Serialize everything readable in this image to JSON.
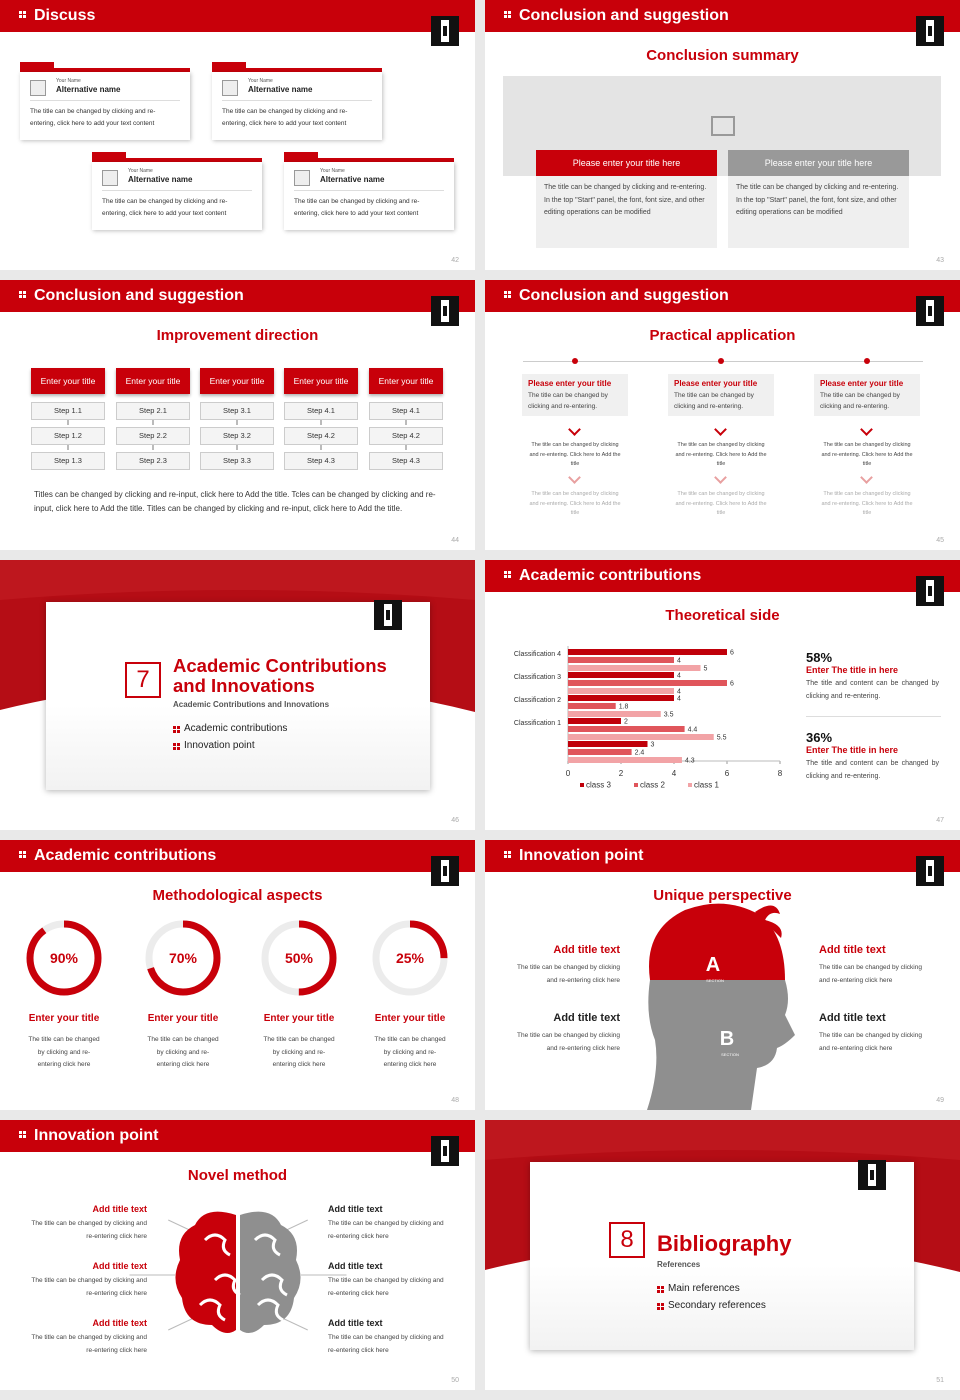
{
  "slides": [
    {
      "header": "Discuss",
      "page": "42",
      "cards": [
        {
          "small": "Your Name",
          "name": "Alternative name",
          "text": "The title can be changed by clicking and re-entering, click here to add your text content"
        },
        {
          "small": "Your Name",
          "name": "Alternative name",
          "text": "The title can be changed by clicking and re-entering, click here to add your text content"
        },
        {
          "small": "Your Name",
          "name": "Alternative name",
          "text": "The title can be changed by clicking and re-entering, click here to add your text content"
        },
        {
          "small": "Your Name",
          "name": "Alternative name",
          "text": "The title can be changed by clicking and re-entering, click here to add your text content"
        }
      ]
    },
    {
      "header": "Conclusion and suggestion",
      "subtitle": "Conclusion summary",
      "page": "43",
      "boxes": [
        {
          "title": "Please enter your title here",
          "text": "The title can be changed by clicking and re-entering. In the top \"Start\" panel, the font, font size, and other editing operations can be modified"
        },
        {
          "title": "Please enter your title here",
          "text": "The title can be changed by clicking and re-entering. In the top \"Start\" panel, the font, font size, and other editing operations can be modified"
        }
      ]
    },
    {
      "header": "Conclusion and suggestion",
      "subtitle": "Improvement direction",
      "page": "44",
      "columns": [
        {
          "title": "Enter your title",
          "steps": [
            "Step 1.1",
            "Step 1.2",
            "Step 1.3"
          ]
        },
        {
          "title": "Enter your title",
          "steps": [
            "Step 2.1",
            "Step 2.2",
            "Step 2.3"
          ]
        },
        {
          "title": "Enter your title",
          "steps": [
            "Step 3.1",
            "Step 3.2",
            "Step 3.3"
          ]
        },
        {
          "title": "Enter your title",
          "steps": [
            "Step 4.1",
            "Step 4.2",
            "Step 4.3"
          ]
        },
        {
          "title": "Enter your title",
          "steps": [
            "Step 4.1",
            "Step 4.2",
            "Step 4.3"
          ]
        }
      ],
      "note": "Titles can be changed by clicking and re-input, click here to Add the title. Tcles can be changed by clicking and re-input, click here to Add the title. Titles can be changed by clicking and re-input, click here to Add the title."
    },
    {
      "header": "Conclusion and suggestion",
      "subtitle": "Practical application",
      "page": "45",
      "columns": [
        {
          "title": "Please enter your title",
          "text": "The title can be changed by clicking and re-entering.",
          "detail1": "The title can be changed by clicking and re-entering. Click here to Add the title",
          "detail2": "The title can be changed by clicking and re-entering. Click here to Add the title"
        },
        {
          "title": "Please enter your title",
          "text": "The title can be changed by clicking and re-entering.",
          "detail1": "The title can be changed by clicking and re-entering. Click here to Add the title",
          "detail2": "The title can be changed by clicking and re-entering. Click here to Add the title"
        },
        {
          "title": "Please enter your title",
          "text": "The title can be changed by clicking and re-entering.",
          "detail1": "The title can be changed by clicking and re-entering. Click here to Add the title",
          "detail2": "The title can be changed by clicking and re-entering. Click here to Add the title"
        }
      ]
    },
    {
      "number": "7",
      "title": "Academic Contributions and Innovations",
      "subtitle": "Academic Contributions and Innovations",
      "items": [
        "Academic contributions",
        "Innovation point"
      ],
      "page": "46"
    },
    {
      "header": "Academic contributions",
      "subtitle": "Theoretical side",
      "page": "47",
      "chart": {
        "type": "bar",
        "categories": [
          "Classification 4",
          "Classification 3",
          "Classification 2",
          "Classification 1",
          null
        ],
        "series": [
          {
            "name": "class 3",
            "color": "#c0000a",
            "values": [
              6,
              4,
              4,
              2,
              3
            ]
          },
          {
            "name": "class 2",
            "color": "#e0555b",
            "values": [
              4,
              6,
              1.8,
              4.4,
              2.4
            ]
          },
          {
            "name": "class 1",
            "color": "#f2a3a6",
            "values": [
              5,
              4,
              3.5,
              5.5,
              4.3
            ]
          }
        ],
        "xlim": [
          0,
          8
        ],
        "xticks": [
          0,
          2,
          4,
          6,
          8
        ]
      },
      "stats": [
        {
          "value": "58%",
          "title": "Enter The title in here",
          "text": "The title and content can be changed by clicking and re-entering."
        },
        {
          "value": "36%",
          "title": "Enter The title in here",
          "text": "The title and content can be changed by clicking and re-entering."
        }
      ]
    },
    {
      "header": "Academic contributions",
      "subtitle": "Methodological aspects",
      "page": "48",
      "rings": [
        {
          "value": 90,
          "label": "90%",
          "title": "Enter your title",
          "text": "The title can be changed by clicking and re-entering click here"
        },
        {
          "value": 70,
          "label": "70%",
          "title": "Enter your title",
          "text": "The title can be changed by clicking and re-entering click here"
        },
        {
          "value": 50,
          "label": "50%",
          "title": "Enter your title",
          "text": "The title can be changed by clicking and re-entering click here"
        },
        {
          "value": 25,
          "label": "25%",
          "title": "Enter your title",
          "text": "The title can be changed by clicking and re-entering click here"
        }
      ]
    },
    {
      "header": "Innovation point",
      "subtitle": "Unique perspective",
      "page": "49",
      "head": {
        "a": "A",
        "b": "B",
        "section": "SECTION"
      },
      "items": [
        {
          "title": "Add title text",
          "text": "The title can be changed by clicking and re-entering click here"
        },
        {
          "title": "Add title text",
          "text": "The title can be changed by clicking and re-entering click here"
        },
        {
          "title": "Add title text",
          "text": "The title can be changed by clicking and re-entering click here"
        },
        {
          "title": "Add title text",
          "text": "The title can be changed by clicking and re-entering click here"
        }
      ]
    },
    {
      "header": "Innovation point",
      "subtitle": "Novel method",
      "page": "50",
      "items": [
        {
          "title": "Add title text",
          "text": "The title can be changed by clicking and re-entering click here"
        },
        {
          "title": "Add title text",
          "text": "The title can be changed by clicking and re-entering click here"
        },
        {
          "title": "Add title text",
          "text": "The title can be changed by clicking and re-entering click here"
        },
        {
          "title": "Add title text",
          "text": "The title can be changed by clicking and re-entering click here"
        },
        {
          "title": "Add title text",
          "text": "The title can be changed by clicking and re-entering click here"
        },
        {
          "title": "Add title text",
          "text": "The title can be changed by clicking and re-entering click here"
        }
      ]
    },
    {
      "number": "8",
      "title": "Bibliography",
      "subtitle": "References",
      "items": [
        "Main references",
        "Secondary references"
      ],
      "page": "51"
    }
  ]
}
